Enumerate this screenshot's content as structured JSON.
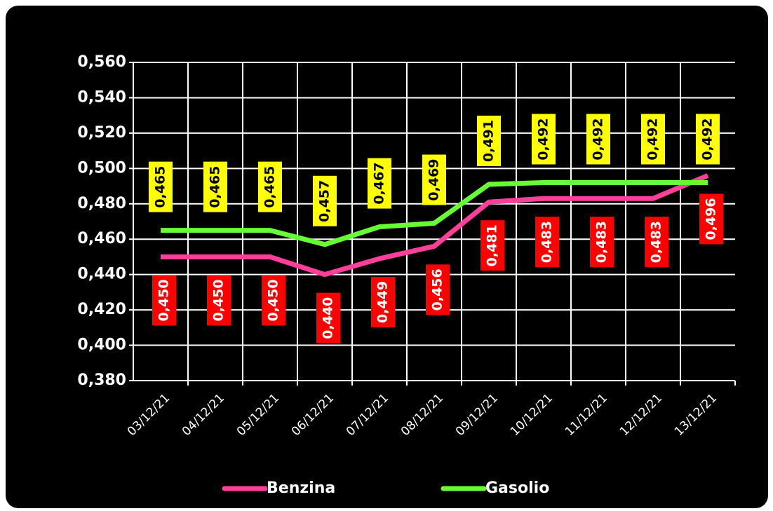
{
  "chart_data": {
    "type": "line",
    "categories": [
      "03/12/21",
      "04/12/21",
      "05/12/21",
      "06/12/21",
      "07/12/21",
      "08/12/21",
      "09/12/21",
      "10/12/21",
      "11/12/21",
      "12/12/21",
      "13/12/21"
    ],
    "series": [
      {
        "name": "Benzina",
        "color": "#ff3f9a",
        "label_color": "#ff0000",
        "label_text_color": "#ffffff",
        "values": [
          0.45,
          0.45,
          0.45,
          0.44,
          0.449,
          0.456,
          0.481,
          0.483,
          0.483,
          0.483,
          0.496
        ],
        "value_labels": [
          "0,450",
          "0,450",
          "0,450",
          "0,440",
          "0,449",
          "0,456",
          "0,481",
          "0,483",
          "0,483",
          "0,483",
          "0,496"
        ]
      },
      {
        "name": "Gasolio",
        "color": "#66ff33",
        "label_color": "#ffff00",
        "label_text_color": "#000000",
        "values": [
          0.465,
          0.465,
          0.465,
          0.457,
          0.467,
          0.469,
          0.491,
          0.492,
          0.492,
          0.492,
          0.492
        ],
        "value_labels": [
          "0,465",
          "0,465",
          "0,465",
          "0,457",
          "0,467",
          "0,469",
          "0,491",
          "0,492",
          "0,492",
          "0,492",
          "0,492"
        ]
      }
    ],
    "ylim": [
      0.38,
      0.56
    ],
    "yticks": [
      {
        "value": 0.38,
        "label": "0,380"
      },
      {
        "value": 0.4,
        "label": "0,400"
      },
      {
        "value": 0.42,
        "label": "0,420"
      },
      {
        "value": 0.44,
        "label": "0,440"
      },
      {
        "value": 0.46,
        "label": "0,460"
      },
      {
        "value": 0.48,
        "label": "0,480"
      },
      {
        "value": 0.5,
        "label": "0,500"
      },
      {
        "value": 0.52,
        "label": "0,520"
      },
      {
        "value": 0.54,
        "label": "0,540"
      },
      {
        "value": 0.56,
        "label": "0,560"
      }
    ],
    "grid": true
  }
}
